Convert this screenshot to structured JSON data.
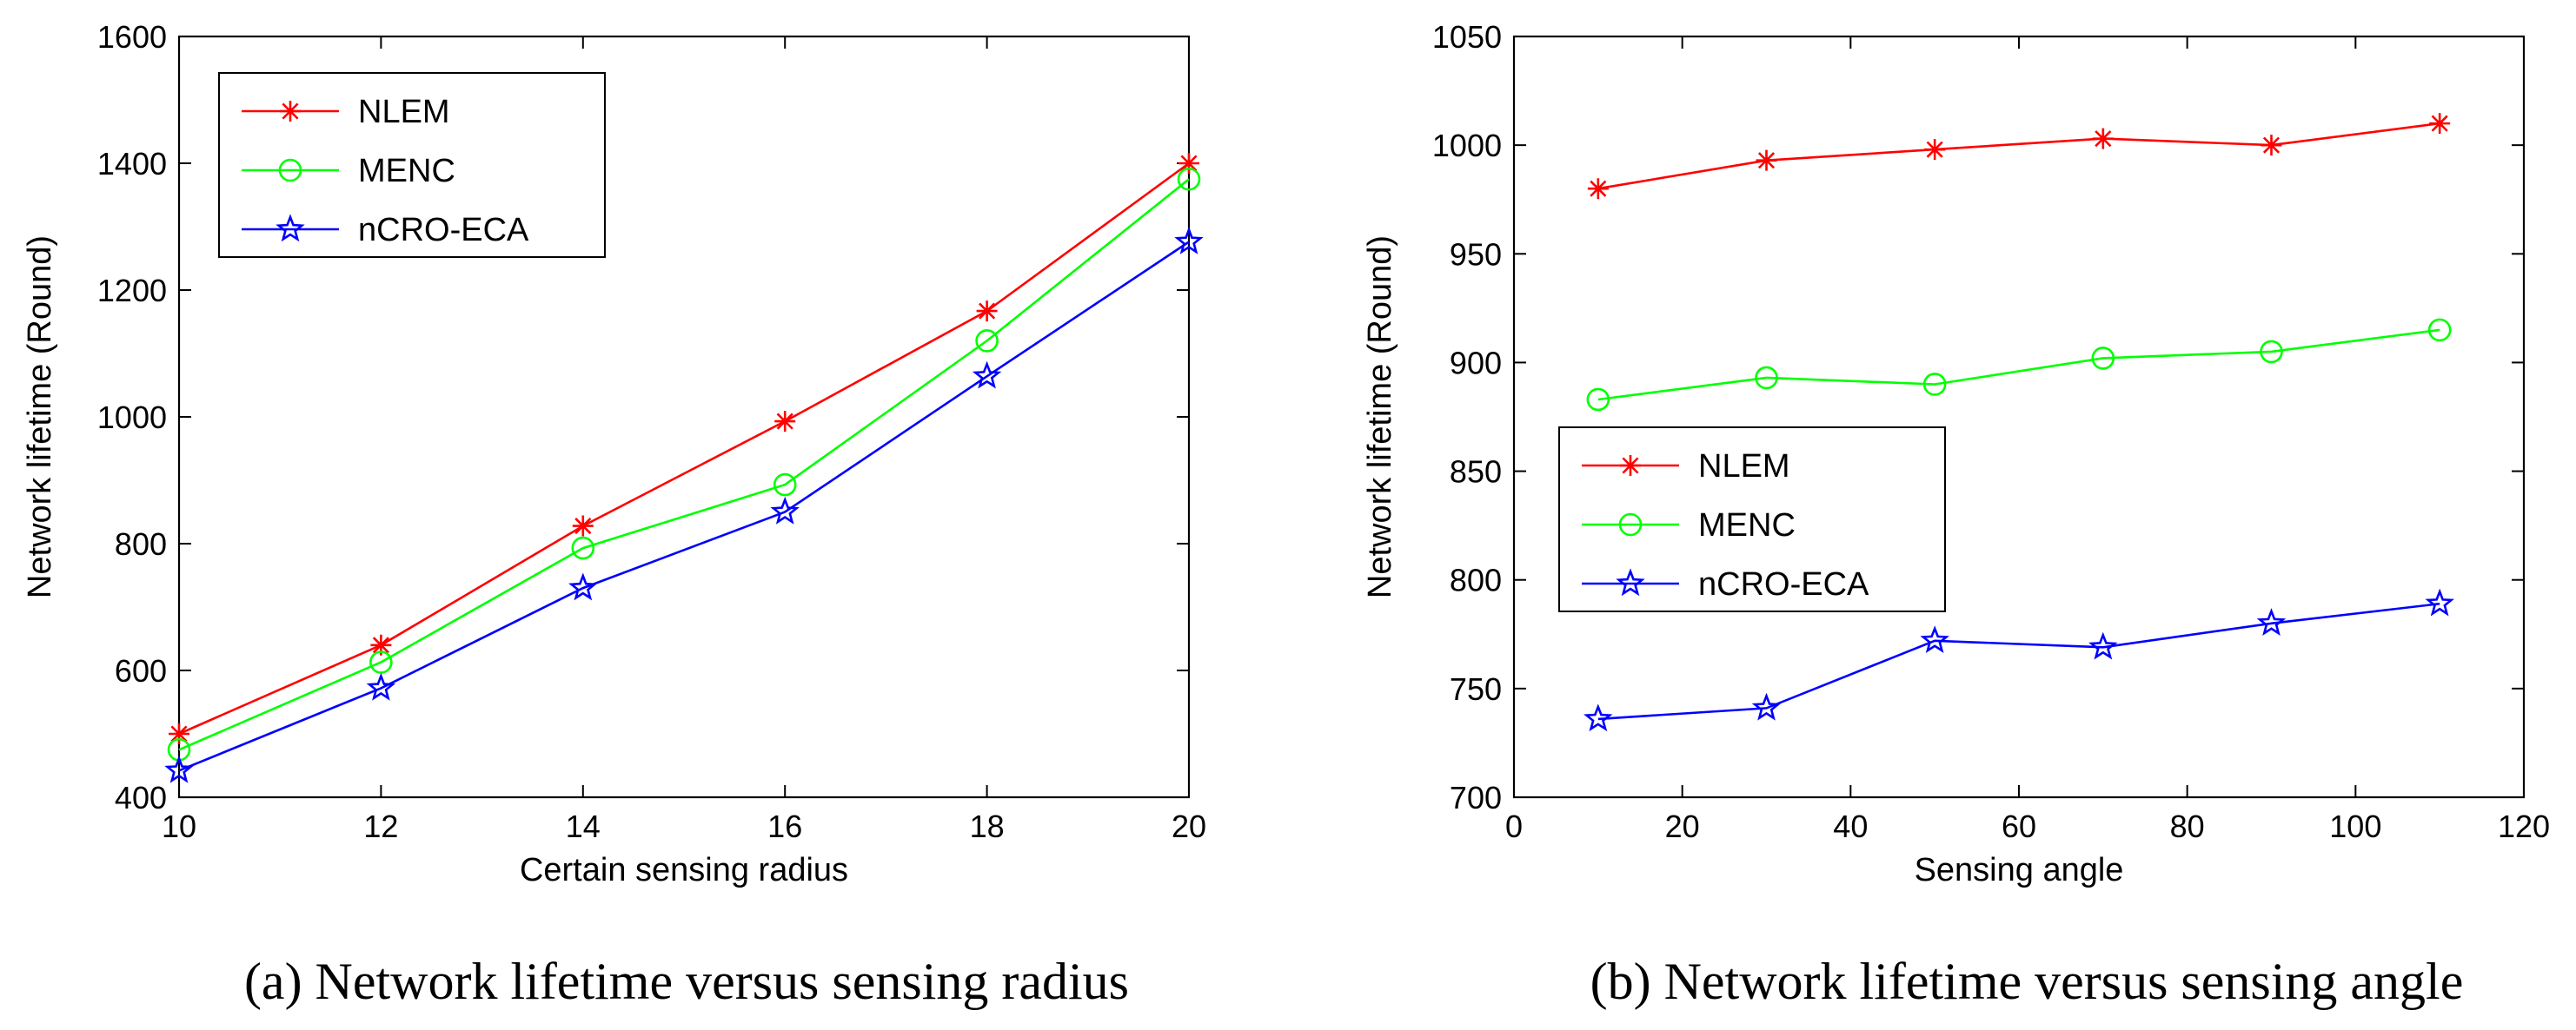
{
  "colors": {
    "NLEM": "#ff0000",
    "MENC": "#00ff00",
    "nCRO-ECA": "#0000ff"
  },
  "chart_data": [
    {
      "type": "line",
      "caption": "(a) Network lifetime versus sensing radius",
      "xlabel": "Certain sensing radius",
      "ylabel": "Network lifetime (Round)",
      "xlim": [
        10,
        20
      ],
      "ylim": [
        400,
        1600
      ],
      "xticks": [
        10,
        12,
        14,
        16,
        18,
        20
      ],
      "yticks": [
        400,
        600,
        800,
        1000,
        1200,
        1400,
        1600
      ],
      "legend_position": "top-left",
      "x": [
        10,
        12,
        14,
        16,
        18,
        20
      ],
      "series": [
        {
          "name": "NLEM",
          "marker": "asterisk",
          "values": [
            500,
            640,
            828,
            993,
            1167,
            1400
          ]
        },
        {
          "name": "MENC",
          "marker": "circle",
          "values": [
            475,
            613,
            793,
            893,
            1120,
            1375
          ]
        },
        {
          "name": "nCRO-ECA",
          "marker": "star",
          "values": [
            442,
            572,
            730,
            850,
            1064,
            1276
          ]
        }
      ]
    },
    {
      "type": "line",
      "caption": "(b) Network lifetime versus sensing angle",
      "xlabel": "Sensing angle",
      "ylabel": "Network lifetime (Round)",
      "xlim": [
        0,
        120
      ],
      "ylim": [
        700,
        1050
      ],
      "xticks": [
        0,
        20,
        40,
        60,
        80,
        100,
        120
      ],
      "yticks": [
        700,
        750,
        800,
        850,
        900,
        950,
        1000,
        1050
      ],
      "legend_position": "center-left",
      "x": [
        10,
        30,
        50,
        70,
        90,
        110
      ],
      "series": [
        {
          "name": "NLEM",
          "marker": "asterisk",
          "values": [
            980,
            993,
            998,
            1003,
            1000,
            1010
          ]
        },
        {
          "name": "MENC",
          "marker": "circle",
          "values": [
            883,
            893,
            890,
            902,
            905,
            915
          ]
        },
        {
          "name": "nCRO-ECA",
          "marker": "star",
          "values": [
            736,
            741,
            772,
            769,
            780,
            789
          ]
        }
      ]
    }
  ]
}
